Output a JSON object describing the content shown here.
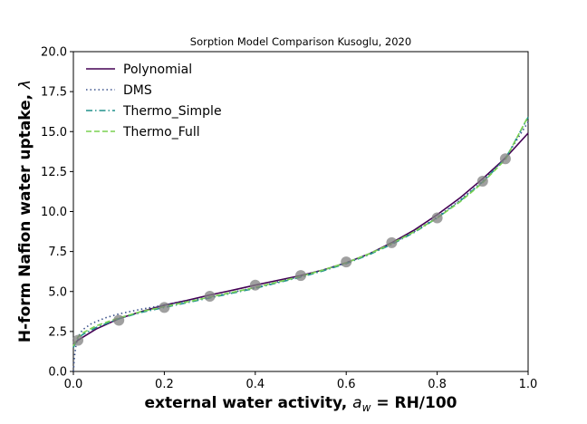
{
  "chart_data": {
    "type": "line",
    "title": "Sorption Model Comparison Kusoglu, 2020",
    "xlabel_main": "external water activity, ",
    "xlabel_var": "a",
    "xlabel_sub": "w",
    "xlabel_rest": " = RH/100",
    "ylabel_main": "H-form Nafion water uptake, ",
    "ylabel_var": "λ",
    "xlim": [
      0.0,
      1.0
    ],
    "ylim": [
      0.0,
      20.0
    ],
    "xticks": [
      "0.0",
      "0.2",
      "0.4",
      "0.6",
      "0.8",
      "1.0"
    ],
    "yticks": [
      "0.0",
      "2.5",
      "5.0",
      "7.5",
      "10.0",
      "12.5",
      "15.0",
      "17.5",
      "20.0"
    ],
    "grid": false,
    "legend_position": "top-left",
    "series": [
      {
        "name": "Polynomial",
        "color": "#440154",
        "dash": "solid",
        "x": [
          0.0,
          0.01,
          0.05,
          0.1,
          0.15,
          0.2,
          0.25,
          0.3,
          0.35,
          0.4,
          0.45,
          0.5,
          0.55,
          0.6,
          0.65,
          0.7,
          0.75,
          0.8,
          0.85,
          0.9,
          0.95,
          1.0
        ],
        "y": [
          1.7,
          1.95,
          2.65,
          3.3,
          3.75,
          4.15,
          4.45,
          4.78,
          5.08,
          5.4,
          5.7,
          6.0,
          6.35,
          6.8,
          7.35,
          8.05,
          8.85,
          9.8,
          10.85,
          12.05,
          13.35,
          14.9
        ]
      },
      {
        "name": "DMS",
        "color": "#3b528b",
        "dash": "dotted",
        "x": [
          0.0,
          0.002,
          0.005,
          0.01,
          0.02,
          0.04,
          0.07,
          0.1,
          0.15,
          0.2,
          0.25,
          0.3,
          0.35,
          0.4,
          0.45,
          0.5,
          0.55,
          0.6,
          0.65,
          0.7,
          0.75,
          0.8,
          0.85,
          0.9,
          0.95,
          1.0
        ],
        "y": [
          0.0,
          0.8,
          1.5,
          2.15,
          2.6,
          3.0,
          3.35,
          3.6,
          3.9,
          4.15,
          4.4,
          4.65,
          4.95,
          5.25,
          5.6,
          5.95,
          6.35,
          6.8,
          7.35,
          8.0,
          8.75,
          9.65,
          10.7,
          11.9,
          13.35,
          15.6
        ]
      },
      {
        "name": "Thermo_Simple",
        "color": "#21918c",
        "dash": "dashdot",
        "x": [
          0.0,
          0.005,
          0.01,
          0.02,
          0.05,
          0.1,
          0.15,
          0.2,
          0.25,
          0.3,
          0.35,
          0.4,
          0.45,
          0.5,
          0.55,
          0.6,
          0.65,
          0.7,
          0.75,
          0.8,
          0.85,
          0.9,
          0.95,
          1.0
        ],
        "y": [
          1.5,
          1.8,
          2.05,
          2.3,
          2.75,
          3.3,
          3.7,
          4.0,
          4.3,
          4.6,
          4.9,
          5.2,
          5.55,
          5.9,
          6.3,
          6.75,
          7.3,
          7.95,
          8.7,
          9.6,
          10.65,
          11.85,
          13.3,
          15.9
        ]
      },
      {
        "name": "Thermo_Full",
        "color": "#7ad151",
        "dash": "dashed",
        "x": [
          0.0,
          0.005,
          0.01,
          0.02,
          0.05,
          0.1,
          0.15,
          0.2,
          0.25,
          0.3,
          0.35,
          0.4,
          0.45,
          0.5,
          0.55,
          0.6,
          0.65,
          0.7,
          0.75,
          0.8,
          0.85,
          0.9,
          0.95,
          1.0
        ],
        "y": [
          1.6,
          1.9,
          2.15,
          2.4,
          2.85,
          3.35,
          3.75,
          4.05,
          4.35,
          4.65,
          4.95,
          5.25,
          5.6,
          5.95,
          6.35,
          6.8,
          7.35,
          8.0,
          8.75,
          9.6,
          10.6,
          11.8,
          13.25,
          15.95
        ]
      }
    ],
    "points": {
      "color": "#808080",
      "x": [
        0.01,
        0.1,
        0.2,
        0.3,
        0.4,
        0.5,
        0.6,
        0.7,
        0.8,
        0.9,
        0.95
      ],
      "y": [
        1.95,
        3.2,
        4.0,
        4.7,
        5.4,
        6.0,
        6.85,
        8.05,
        9.6,
        11.9,
        13.3
      ]
    }
  }
}
